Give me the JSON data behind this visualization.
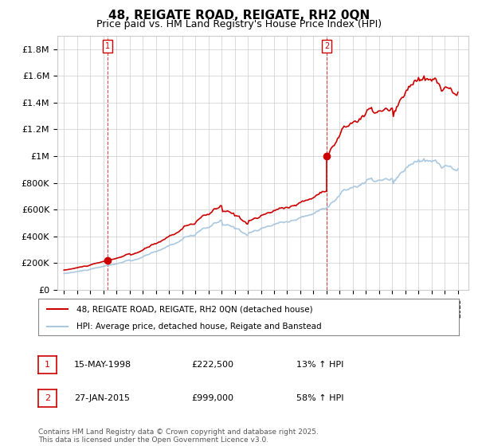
{
  "title": "48, REIGATE ROAD, REIGATE, RH2 0QN",
  "subtitle": "Price paid vs. HM Land Registry's House Price Index (HPI)",
  "sale1_date": "15-MAY-1998",
  "sale1_price": 222500,
  "sale1_hpi": "13% ↑ HPI",
  "sale2_date": "27-JAN-2015",
  "sale2_price": 999000,
  "sale2_hpi": "58% ↑ HPI",
  "legend_line1": "48, REIGATE ROAD, REIGATE, RH2 0QN (detached house)",
  "legend_line2": "HPI: Average price, detached house, Reigate and Banstead",
  "footer": "Contains HM Land Registry data © Crown copyright and database right 2025.\nThis data is licensed under the Open Government Licence v3.0.",
  "sale_color": "#cc0000",
  "hpi_color": "#aac8e0",
  "background_color": "#ffffff",
  "grid_color": "#cccccc",
  "ylim": [
    0,
    1900000
  ],
  "yticks": [
    0,
    200000,
    400000,
    600000,
    800000,
    1000000,
    1200000,
    1400000,
    1600000,
    1800000
  ]
}
